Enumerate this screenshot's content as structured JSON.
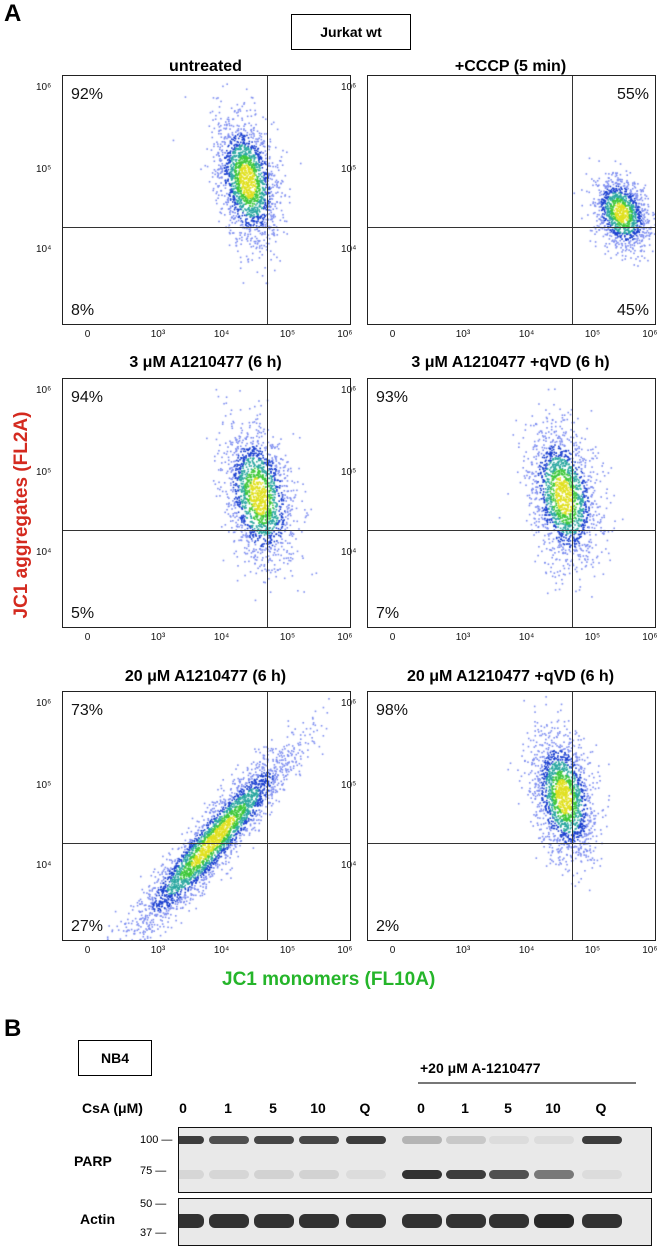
{
  "panel_a": {
    "letter": "A",
    "cell_line": "Jurkat wt",
    "y_axis_title": "JC1 aggregates (FL2A)",
    "x_axis_title": "JC1 monomers  (FL10A)",
    "x_ticks": [
      "0",
      "10³",
      "10⁴",
      "10⁵",
      "10⁶"
    ],
    "y_ticks": [
      "10⁶",
      "10⁵",
      "10⁴"
    ],
    "plots": [
      {
        "title": "untreated",
        "upper_pct": "92%",
        "lower_pct": "8%",
        "upper_pos": "left",
        "lower_pos": "left"
      },
      {
        "title": "+CCCP (5 min)",
        "upper_pct": "55%",
        "lower_pct": "45%",
        "upper_pos": "right",
        "lower_pos": "right"
      },
      {
        "title": "3 μM A1210477 (6 h)",
        "upper_pct": "94%",
        "lower_pct": "5%",
        "upper_pos": "left",
        "lower_pos": "left"
      },
      {
        "title": "3 μM A1210477 +qVD (6 h)",
        "upper_pct": "93%",
        "lower_pct": "7%",
        "upper_pos": "left",
        "lower_pos": "left"
      },
      {
        "title": "20 μM A1210477 (6 h)",
        "upper_pct": "73%",
        "lower_pct": "27%",
        "upper_pos": "left",
        "lower_pos": "left"
      },
      {
        "title": "20 μM A1210477 +qVD (6 h)",
        "upper_pct": "98%",
        "lower_pct": "2%",
        "upper_pos": "left",
        "lower_pos": "left"
      }
    ]
  },
  "panel_b": {
    "letter": "B",
    "cell_line": "NB4",
    "treatment_label": "+20 μM A-1210477",
    "csa_label": "CsA (μM)",
    "lanes": [
      "0",
      "1",
      "5",
      "10",
      "Q",
      "0",
      "1",
      "5",
      "10",
      "Q"
    ],
    "blots": [
      {
        "name": "PARP",
        "markers": [
          "100",
          "75"
        ]
      },
      {
        "name": "Actin",
        "markers": [
          "50",
          "37"
        ]
      }
    ],
    "parp_full_intensity": [
      0.85,
      0.75,
      0.8,
      0.8,
      0.85,
      0.25,
      0.15,
      0.05,
      0.05,
      0.85
    ],
    "parp_cleaved_intensity": [
      0.08,
      0.08,
      0.1,
      0.1,
      0.05,
      0.9,
      0.85,
      0.75,
      0.55,
      0.05
    ],
    "actin_intensity": [
      0.9,
      0.9,
      0.9,
      0.9,
      0.9,
      0.9,
      0.9,
      0.9,
      0.95,
      0.9
    ]
  }
}
